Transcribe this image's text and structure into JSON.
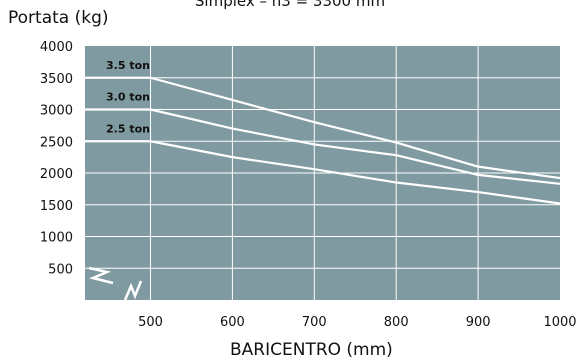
{
  "header": {
    "top_title": "Simplex – h3 = 3300 mm"
  },
  "chart_data": {
    "type": "line",
    "title": "",
    "xlabel": "BARICENTRO (mm)",
    "ylabel": "Portata (kg)",
    "xlim": [
      420,
      1000
    ],
    "ylim": [
      0,
      4000
    ],
    "x_ticks": [
      "500",
      "600",
      "700",
      "800",
      "900",
      "1000"
    ],
    "y_ticks": [
      "500",
      "1000",
      "1500",
      "2000",
      "2500",
      "3000",
      "3500",
      "4000"
    ],
    "grid": true,
    "background_color": "#7f9aa0",
    "line_color": "#ffffff",
    "series": [
      {
        "name": "3.5 ton",
        "x": [
          420,
          500,
          600,
          700,
          800,
          900,
          1000
        ],
        "y": [
          3500,
          3500,
          3150,
          2800,
          2480,
          2100,
          1920
        ]
      },
      {
        "name": "3.0 ton",
        "x": [
          420,
          500,
          600,
          700,
          800,
          900,
          1000
        ],
        "y": [
          3000,
          3000,
          2700,
          2450,
          2280,
          1970,
          1830
        ]
      },
      {
        "name": "2.5 ton",
        "x": [
          420,
          500,
          600,
          700,
          800,
          900,
          1000
        ],
        "y": [
          2500,
          2500,
          2250,
          2060,
          1850,
          1700,
          1520
        ]
      }
    ]
  }
}
